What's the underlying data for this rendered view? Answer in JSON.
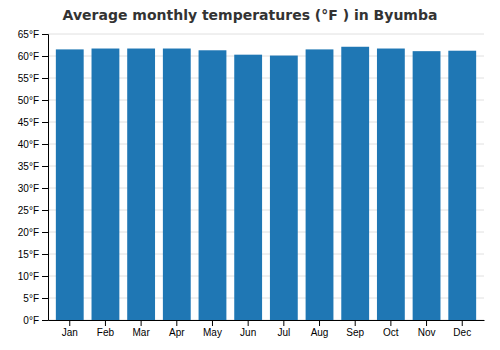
{
  "chart_data": {
    "type": "bar",
    "title": "Average monthly temperatures (°F ) in Byumba",
    "categories": [
      "Jan",
      "Feb",
      "Mar",
      "Apr",
      "May",
      "Jun",
      "Jul",
      "Aug",
      "Sep",
      "Oct",
      "Nov",
      "Dec"
    ],
    "values": [
      61.5,
      61.7,
      61.7,
      61.7,
      61.3,
      60.3,
      60.1,
      61.5,
      62.1,
      61.7,
      61.1,
      61.2
    ],
    "ylim": [
      0,
      65
    ],
    "yticks": [
      {
        "value": 0,
        "label": "0°F"
      },
      {
        "value": 5,
        "label": "5°F"
      },
      {
        "value": 10,
        "label": "10°F"
      },
      {
        "value": 15,
        "label": "15°F"
      },
      {
        "value": 20,
        "label": "20°F"
      },
      {
        "value": 25,
        "label": "25°F"
      },
      {
        "value": 30,
        "label": "30°F"
      },
      {
        "value": 35,
        "label": "35°F"
      },
      {
        "value": 40,
        "label": "40°F"
      },
      {
        "value": 45,
        "label": "45°F"
      },
      {
        "value": 50,
        "label": "50°F"
      },
      {
        "value": 55,
        "label": "55°F"
      },
      {
        "value": 60,
        "label": "60°F"
      },
      {
        "value": 65,
        "label": "65°F"
      }
    ],
    "grid": true
  }
}
